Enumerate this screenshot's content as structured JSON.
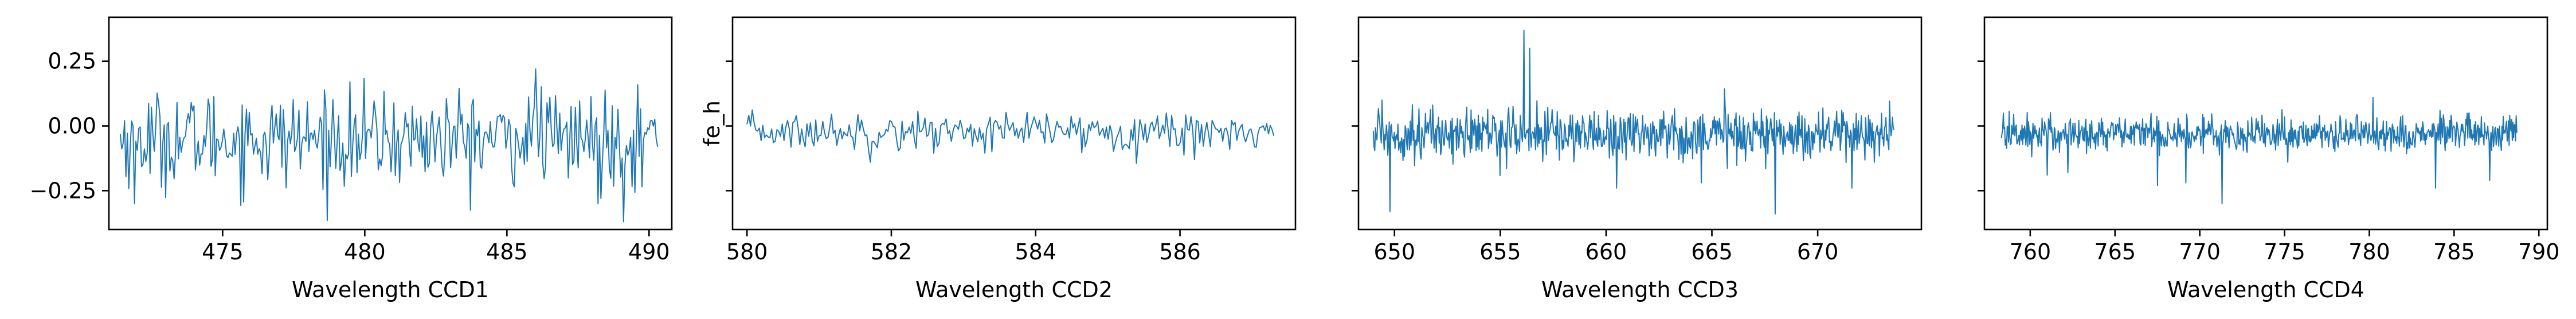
{
  "chart_data": [
    {
      "type": "line",
      "xlabel": "Wavelength CCD1",
      "ylabel": "",
      "xlim": [
        471.0,
        490.8
      ],
      "ylim": [
        -0.4,
        0.42
      ],
      "xticks": [
        "475",
        "480",
        "485",
        "490"
      ],
      "yticks": [
        "0.25",
        "0.00",
        "−0.25"
      ],
      "ytick_values": [
        0.25,
        0.0,
        -0.25
      ],
      "series": [
        {
          "color": "#1f77b4",
          "x_range": [
            471.4,
            490.3
          ],
          "points": 380,
          "center": -0.05,
          "noise": 0.09,
          "spikes": [
            [
              471.9,
              -0.3
            ],
            [
              486.0,
              0.22
            ],
            [
              488.2,
              -0.3
            ],
            [
              489.1,
              -0.37
            ]
          ]
        }
      ]
    },
    {
      "type": "line",
      "xlabel": "Wavelength CCD2",
      "ylabel": "fe_h",
      "xlim": [
        579.8,
        587.6
      ],
      "ylim": [
        -0.4,
        0.42
      ],
      "xticks": [
        "580",
        "582",
        "584",
        "586"
      ],
      "yticks": [],
      "series": [
        {
          "color": "#1f77b4",
          "x_range": [
            580.0,
            587.3
          ],
          "points": 300,
          "center": -0.02,
          "noise": 0.035,
          "spikes": [
            [
              580.8,
              -0.08
            ],
            [
              581.7,
              -0.14
            ],
            [
              583.4,
              -0.1
            ],
            [
              586.2,
              -0.13
            ],
            [
              585.8,
              0.05
            ]
          ]
        }
      ]
    },
    {
      "type": "line",
      "xlabel": "Wavelength CCD3",
      "ylabel": "",
      "xlim": [
        648.3,
        674.9
      ],
      "ylim": [
        -0.4,
        0.42
      ],
      "xticks": [
        "650",
        "655",
        "660",
        "665",
        "670"
      ],
      "yticks": [],
      "series": [
        {
          "color": "#1f77b4",
          "x_range": [
            649.0,
            673.6
          ],
          "points": 720,
          "center": -0.03,
          "noise": 0.05,
          "spikes": [
            [
              649.4,
              0.1
            ],
            [
              649.8,
              -0.33
            ],
            [
              656.1,
              0.37
            ],
            [
              656.4,
              0.3
            ],
            [
              660.5,
              -0.24
            ],
            [
              664.5,
              -0.22
            ],
            [
              668.0,
              -0.34
            ],
            [
              671.6,
              -0.24
            ]
          ]
        }
      ]
    },
    {
      "type": "line",
      "xlabel": "Wavelength CCD4",
      "ylabel": "",
      "xlim": [
        757.3,
        790.5
      ],
      "ylim": [
        -0.4,
        0.42
      ],
      "xticks": [
        "760",
        "765",
        "770",
        "775",
        "780",
        "785",
        "790"
      ],
      "yticks": [],
      "series": [
        {
          "color": "#1f77b4",
          "x_range": [
            758.3,
            788.7
          ],
          "points": 800,
          "center": -0.03,
          "noise": 0.035,
          "spikes": [
            [
              758.4,
              0.05
            ],
            [
              761.0,
              -0.19
            ],
            [
              762.2,
              -0.18
            ],
            [
              767.5,
              -0.23
            ],
            [
              769.2,
              -0.22
            ],
            [
              771.3,
              -0.3
            ],
            [
              775.2,
              -0.14
            ],
            [
              780.2,
              0.11
            ],
            [
              783.9,
              -0.24
            ],
            [
              787.1,
              -0.21
            ]
          ]
        }
      ]
    }
  ]
}
